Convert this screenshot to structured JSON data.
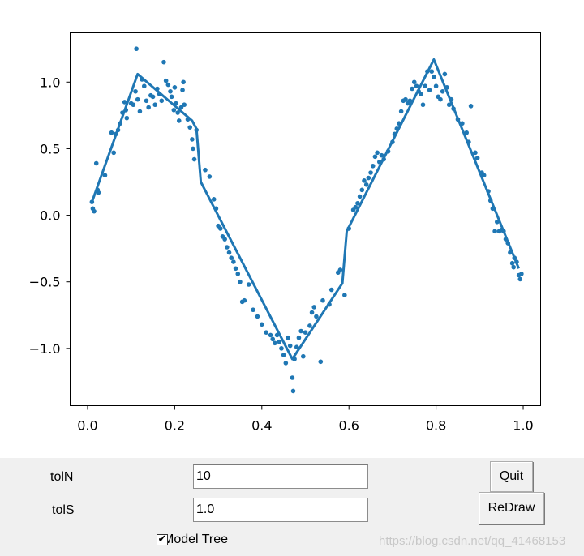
{
  "chart_data": {
    "type": "scatter",
    "title": "",
    "xlabel": "",
    "ylabel": "",
    "xlim": [
      -0.04,
      1.04
    ],
    "ylim": [
      -1.43,
      1.37
    ],
    "x_ticks": [
      "0.0",
      "0.2",
      "0.4",
      "0.6",
      "0.8",
      "1.0"
    ],
    "x_tick_values": [
      0.0,
      0.2,
      0.4,
      0.6,
      0.8,
      1.0
    ],
    "y_ticks": [
      "1.0",
      "0.5",
      "0.0",
      "−0.5",
      "−1.0"
    ],
    "y_tick_values": [
      1.0,
      0.5,
      0.0,
      -0.5,
      -1.0
    ],
    "grid": false,
    "color": "#1f77b4",
    "series": [
      {
        "kind": "scatter",
        "points": [
          [
            0.01,
            0.1
          ],
          [
            0.012,
            0.05
          ],
          [
            0.015,
            0.03
          ],
          [
            0.02,
            0.39
          ],
          [
            0.023,
            0.19
          ],
          [
            0.025,
            0.17
          ],
          [
            0.04,
            0.3
          ],
          [
            0.055,
            0.62
          ],
          [
            0.06,
            0.47
          ],
          [
            0.065,
            0.61
          ],
          [
            0.07,
            0.64
          ],
          [
            0.075,
            0.69
          ],
          [
            0.08,
            0.77
          ],
          [
            0.085,
            0.85
          ],
          [
            0.088,
            0.79
          ],
          [
            0.09,
            0.73
          ],
          [
            0.1,
            0.84
          ],
          [
            0.105,
            0.83
          ],
          [
            0.11,
            0.93
          ],
          [
            0.115,
            0.87
          ],
          [
            0.12,
            0.78
          ],
          [
            0.112,
            1.25
          ],
          [
            0.125,
            1.02
          ],
          [
            0.13,
            0.97
          ],
          [
            0.135,
            0.86
          ],
          [
            0.14,
            0.81
          ],
          [
            0.145,
            0.9
          ],
          [
            0.15,
            0.89
          ],
          [
            0.155,
            0.83
          ],
          [
            0.16,
            0.95
          ],
          [
            0.165,
            0.91
          ],
          [
            0.17,
            0.86
          ],
          [
            0.175,
            1.15
          ],
          [
            0.18,
            1.01
          ],
          [
            0.185,
            0.98
          ],
          [
            0.19,
            0.93
          ],
          [
            0.193,
            0.89
          ],
          [
            0.198,
            0.79
          ],
          [
            0.2,
            0.96
          ],
          [
            0.203,
            0.84
          ],
          [
            0.207,
            0.77
          ],
          [
            0.21,
            0.71
          ],
          [
            0.215,
            0.81
          ],
          [
            0.218,
            0.94
          ],
          [
            0.22,
            1.0
          ],
          [
            0.222,
            0.83
          ],
          [
            0.23,
            0.72
          ],
          [
            0.235,
            0.66
          ],
          [
            0.24,
            0.57
          ],
          [
            0.242,
            0.5
          ],
          [
            0.245,
            0.42
          ],
          [
            0.25,
            0.64
          ],
          [
            0.27,
            0.34
          ],
          [
            0.28,
            0.29
          ],
          [
            0.29,
            0.12
          ],
          [
            0.295,
            0.05
          ],
          [
            0.3,
            -0.08
          ],
          [
            0.305,
            -0.1
          ],
          [
            0.31,
            -0.16
          ],
          [
            0.315,
            -0.18
          ],
          [
            0.32,
            -0.24
          ],
          [
            0.325,
            -0.28
          ],
          [
            0.33,
            -0.32
          ],
          [
            0.335,
            -0.35
          ],
          [
            0.34,
            -0.4
          ],
          [
            0.345,
            -0.44
          ],
          [
            0.35,
            -0.5
          ],
          [
            0.355,
            -0.65
          ],
          [
            0.36,
            -0.64
          ],
          [
            0.37,
            -0.52
          ],
          [
            0.38,
            -0.71
          ],
          [
            0.39,
            -0.76
          ],
          [
            0.4,
            -0.82
          ],
          [
            0.41,
            -0.88
          ],
          [
            0.42,
            -0.9
          ],
          [
            0.425,
            -0.93
          ],
          [
            0.43,
            -0.96
          ],
          [
            0.435,
            -0.9
          ],
          [
            0.44,
            -0.95
          ],
          [
            0.445,
            -1.0
          ],
          [
            0.45,
            -1.05
          ],
          [
            0.455,
            -1.11
          ],
          [
            0.46,
            -0.92
          ],
          [
            0.465,
            -0.98
          ],
          [
            0.47,
            -1.22
          ],
          [
            0.472,
            -1.32
          ],
          [
            0.475,
            -1.08
          ],
          [
            0.48,
            -0.99
          ],
          [
            0.485,
            -0.92
          ],
          [
            0.49,
            -0.87
          ],
          [
            0.495,
            -1.06
          ],
          [
            0.5,
            -0.88
          ],
          [
            0.51,
            -0.83
          ],
          [
            0.515,
            -0.73
          ],
          [
            0.52,
            -0.69
          ],
          [
            0.525,
            -0.76
          ],
          [
            0.535,
            -1.1
          ],
          [
            0.54,
            -0.64
          ],
          [
            0.555,
            -0.67
          ],
          [
            0.56,
            -0.56
          ],
          [
            0.575,
            -0.43
          ],
          [
            0.58,
            -0.41
          ],
          [
            0.59,
            -0.6
          ],
          [
            0.6,
            -0.1
          ],
          [
            0.61,
            0.04
          ],
          [
            0.615,
            0.06
          ],
          [
            0.62,
            0.09
          ],
          [
            0.625,
            0.14
          ],
          [
            0.63,
            0.19
          ],
          [
            0.635,
            0.26
          ],
          [
            0.64,
            0.23
          ],
          [
            0.645,
            0.28
          ],
          [
            0.65,
            0.32
          ],
          [
            0.655,
            0.37
          ],
          [
            0.66,
            0.44
          ],
          [
            0.665,
            0.47
          ],
          [
            0.67,
            0.4
          ],
          [
            0.675,
            0.45
          ],
          [
            0.68,
            0.42
          ],
          [
            0.69,
            0.48
          ],
          [
            0.7,
            0.55
          ],
          [
            0.705,
            0.61
          ],
          [
            0.71,
            0.65
          ],
          [
            0.715,
            0.69
          ],
          [
            0.72,
            0.78
          ],
          [
            0.725,
            0.86
          ],
          [
            0.73,
            0.87
          ],
          [
            0.735,
            0.84
          ],
          [
            0.74,
            0.86
          ],
          [
            0.745,
            0.95
          ],
          [
            0.75,
            1.0
          ],
          [
            0.755,
            0.97
          ],
          [
            0.76,
            0.93
          ],
          [
            0.765,
            0.91
          ],
          [
            0.77,
            0.83
          ],
          [
            0.775,
            0.97
          ],
          [
            0.78,
            1.08
          ],
          [
            0.785,
            0.94
          ],
          [
            0.79,
            1.08
          ],
          [
            0.795,
            1.04
          ],
          [
            0.8,
            0.97
          ],
          [
            0.805,
            0.89
          ],
          [
            0.81,
            0.87
          ],
          [
            0.815,
            0.93
          ],
          [
            0.82,
            1.06
          ],
          [
            0.825,
            0.96
          ],
          [
            0.83,
            0.83
          ],
          [
            0.835,
            0.87
          ],
          [
            0.84,
            0.8
          ],
          [
            0.85,
            0.72
          ],
          [
            0.86,
            0.69
          ],
          [
            0.87,
            0.62
          ],
          [
            0.875,
            0.55
          ],
          [
            0.88,
            0.82
          ],
          [
            0.89,
            0.47
          ],
          [
            0.895,
            0.43
          ],
          [
            0.905,
            0.32
          ],
          [
            0.91,
            0.3
          ],
          [
            0.92,
            0.18
          ],
          [
            0.925,
            0.11
          ],
          [
            0.93,
            0.05
          ],
          [
            0.935,
            -0.12
          ],
          [
            0.94,
            -0.05
          ],
          [
            0.945,
            -0.12
          ],
          [
            0.95,
            -0.11
          ],
          [
            0.955,
            -0.12
          ],
          [
            0.96,
            -0.18
          ],
          [
            0.965,
            -0.21
          ],
          [
            0.97,
            -0.28
          ],
          [
            0.975,
            -0.36
          ],
          [
            0.978,
            -0.39
          ],
          [
            0.98,
            -0.32
          ],
          [
            0.985,
            -0.35
          ],
          [
            0.99,
            -0.45
          ],
          [
            0.993,
            -0.48
          ],
          [
            0.996,
            -0.44
          ]
        ]
      },
      {
        "kind": "line",
        "points": [
          [
            0.01,
            0.1
          ],
          [
            0.115,
            1.06
          ],
          [
            0.24,
            0.71
          ],
          [
            0.25,
            0.65
          ],
          [
            0.26,
            0.25
          ],
          [
            0.47,
            -1.08
          ],
          [
            0.585,
            -0.51
          ],
          [
            0.595,
            -0.12
          ],
          [
            0.795,
            1.17
          ],
          [
            0.99,
            -0.4
          ]
        ]
      }
    ]
  },
  "controls": {
    "toln_label": "tolN",
    "toln_value": "10",
    "tols_label": "tolS",
    "tols_value": "1.0",
    "model_tree_label": "Model Tree",
    "model_tree_checked": "✔",
    "quit_label": "Quit",
    "redraw_label": "ReDraw"
  },
  "watermark": "https://blog.csdn.net/qq_41468153"
}
